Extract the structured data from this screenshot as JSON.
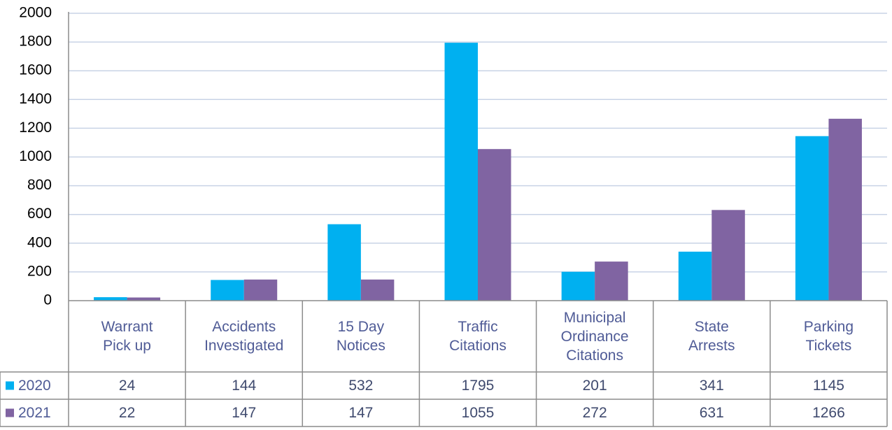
{
  "chart_data": {
    "type": "bar",
    "categories": [
      "Warrant Pick up",
      "Accidents Investigated",
      "15 Day Notices",
      "Traffic Citations",
      "Municipal Ordinance Citations",
      "State Arrests",
      "Parking Tickets"
    ],
    "series": [
      {
        "name": "2020",
        "color": "#00b0f0",
        "values": [
          24,
          144,
          532,
          1795,
          201,
          341,
          1145
        ]
      },
      {
        "name": "2021",
        "color": "#8064a2",
        "values": [
          22,
          147,
          147,
          1055,
          272,
          631,
          1266
        ]
      }
    ],
    "ylim": [
      0,
      2000
    ],
    "yticks": [
      0,
      200,
      400,
      600,
      800,
      1000,
      1200,
      1400,
      1600,
      1800,
      2000
    ],
    "grid": true,
    "data_table": true
  }
}
